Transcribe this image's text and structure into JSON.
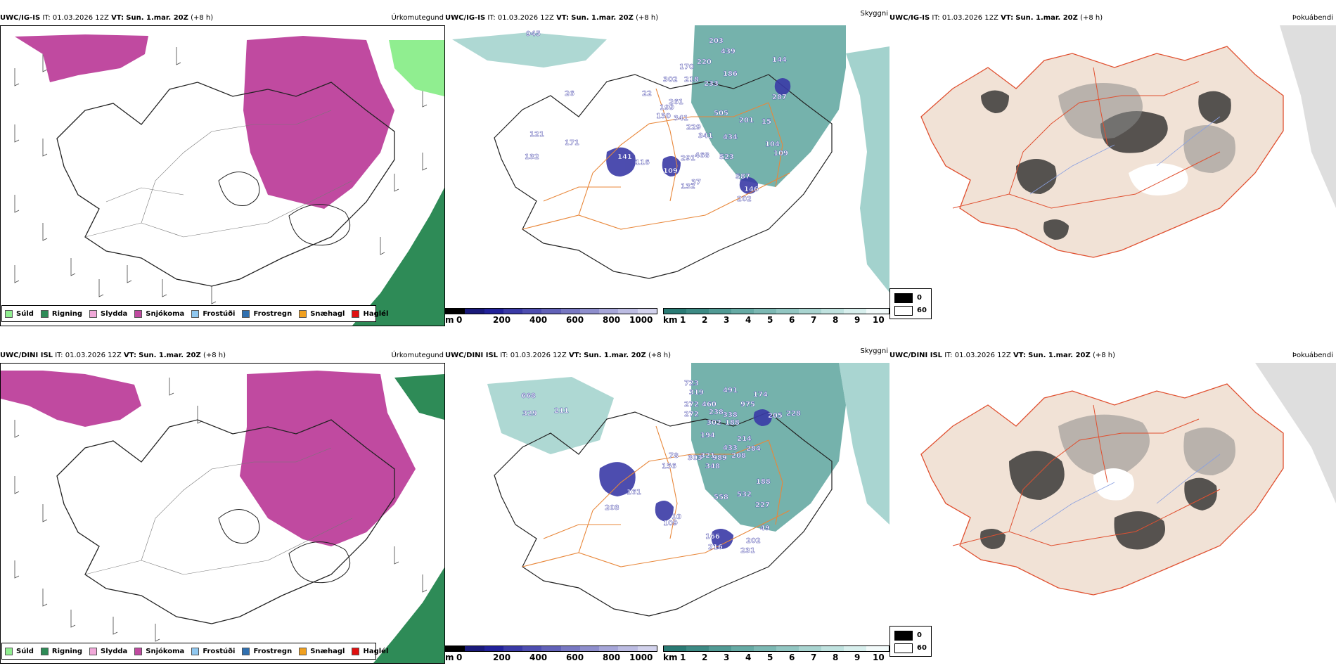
{
  "panels": {
    "top_left": {
      "model": "UWC/IG-IS",
      "it_label": "IT:",
      "it_value": "01.03.2026 12Z",
      "vt_label": "VT:",
      "vt_value": "Sun. 1.mar. 20Z",
      "lead": "(+8 h)",
      "variable": "Úrkomutegund"
    },
    "top_mid": {
      "model": "UWC/IG-IS",
      "it_label": "IT:",
      "it_value": "01.03.2026 12Z",
      "vt_label": "VT:",
      "vt_value": "Sun. 1.mar. 20Z",
      "lead": "(+8 h)",
      "variable": "Skyggni"
    },
    "top_right": {
      "model": "UWC/IG-IS",
      "it_label": "IT:",
      "it_value": "01.03.2026 12Z",
      "vt_label": "VT:",
      "vt_value": "Sun. 1.mar. 20Z",
      "lead": "(+8 h)",
      "variable": "Þokuábendi"
    },
    "bot_left": {
      "model": "UWC/DINI ISL",
      "it_label": "IT:",
      "it_value": "01.03.2026 12Z",
      "vt_label": "VT:",
      "vt_value": "Sun. 1.mar. 20Z",
      "lead": "(+8 h)",
      "variable": "Úrkomutegund"
    },
    "bot_mid": {
      "model": "UWC/DINI ISL",
      "it_label": "IT:",
      "it_value": "01.03.2026 12Z",
      "vt_label": "VT:",
      "vt_value": "Sun. 1.mar. 20Z",
      "lead": "(+8 h)",
      "variable": "Skyggni"
    },
    "bot_right": {
      "model": "UWC/DINI ISL",
      "it_label": "IT:",
      "it_value": "01.03.2026 12Z",
      "vt_label": "VT:",
      "vt_value": "Sun. 1.mar. 20Z",
      "lead": "(+8 h)",
      "variable": "Þokuábendi"
    }
  },
  "precip_legend": [
    {
      "label": "Súld",
      "color": "#90ee90"
    },
    {
      "label": "Rigning",
      "color": "#2e8b57"
    },
    {
      "label": "Slydda",
      "color": "#f0a8d8"
    },
    {
      "label": "Snjókoma",
      "color": "#c04aa0"
    },
    {
      "label": "Frostúði",
      "color": "#90c8f0"
    },
    {
      "label": "Frostregn",
      "color": "#3070b0"
    },
    {
      "label": "Snæhagl",
      "color": "#f0a020"
    },
    {
      "label": "Haglél",
      "color": "#e01010"
    }
  ],
  "cloudbase_scale": {
    "unit": "m",
    "ticks": [
      "0",
      "200",
      "400",
      "600",
      "800",
      "1000"
    ],
    "colors": [
      "#000000",
      "#1a1a7a",
      "#22229a",
      "#3a3aa6",
      "#4e4eb0",
      "#6262b8",
      "#7878c2",
      "#8e8ecc",
      "#a6a6d8",
      "#bcbce2",
      "#d2d2ec"
    ]
  },
  "visibility_scale": {
    "unit": "km",
    "ticks": [
      "1",
      "2",
      "3",
      "4",
      "5",
      "6",
      "7",
      "8",
      "9",
      "10"
    ],
    "colors": [
      "#2a7a74",
      "#3d8a84",
      "#519a94",
      "#66aaa4",
      "#7cb8b3",
      "#92c6c2",
      "#a9d4d0",
      "#c0e2df",
      "#d8efed",
      "#f2fafa"
    ]
  },
  "fog_legend": [
    {
      "label": "0",
      "color": "#000000"
    },
    {
      "label": "60",
      "color": "#ffffff"
    }
  ],
  "cloud_labels_top": [
    "945",
    "203",
    "439",
    "220",
    "170",
    "302",
    "218",
    "233",
    "186",
    "144",
    "22",
    "261",
    "199",
    "287",
    "26",
    "130",
    "341",
    "229",
    "505",
    "201",
    "15",
    "121",
    "171",
    "341",
    "434",
    "104",
    "291",
    "468",
    "523",
    "109",
    "132",
    "141",
    "116",
    "587",
    "109",
    "132",
    "37",
    "146",
    "202"
  ],
  "cloud_labels_bot": [
    "668",
    "329",
    "211",
    "723",
    "319",
    "491",
    "174",
    "272",
    "460",
    "975",
    "228",
    "272",
    "238",
    "338",
    "302",
    "188",
    "205",
    "194",
    "214",
    "284",
    "78",
    "303",
    "321",
    "348",
    "433",
    "989",
    "208",
    "156",
    "161",
    "203",
    "558",
    "532",
    "188",
    "227",
    "109",
    "10",
    "166",
    "216",
    "202",
    "231",
    "49"
  ]
}
